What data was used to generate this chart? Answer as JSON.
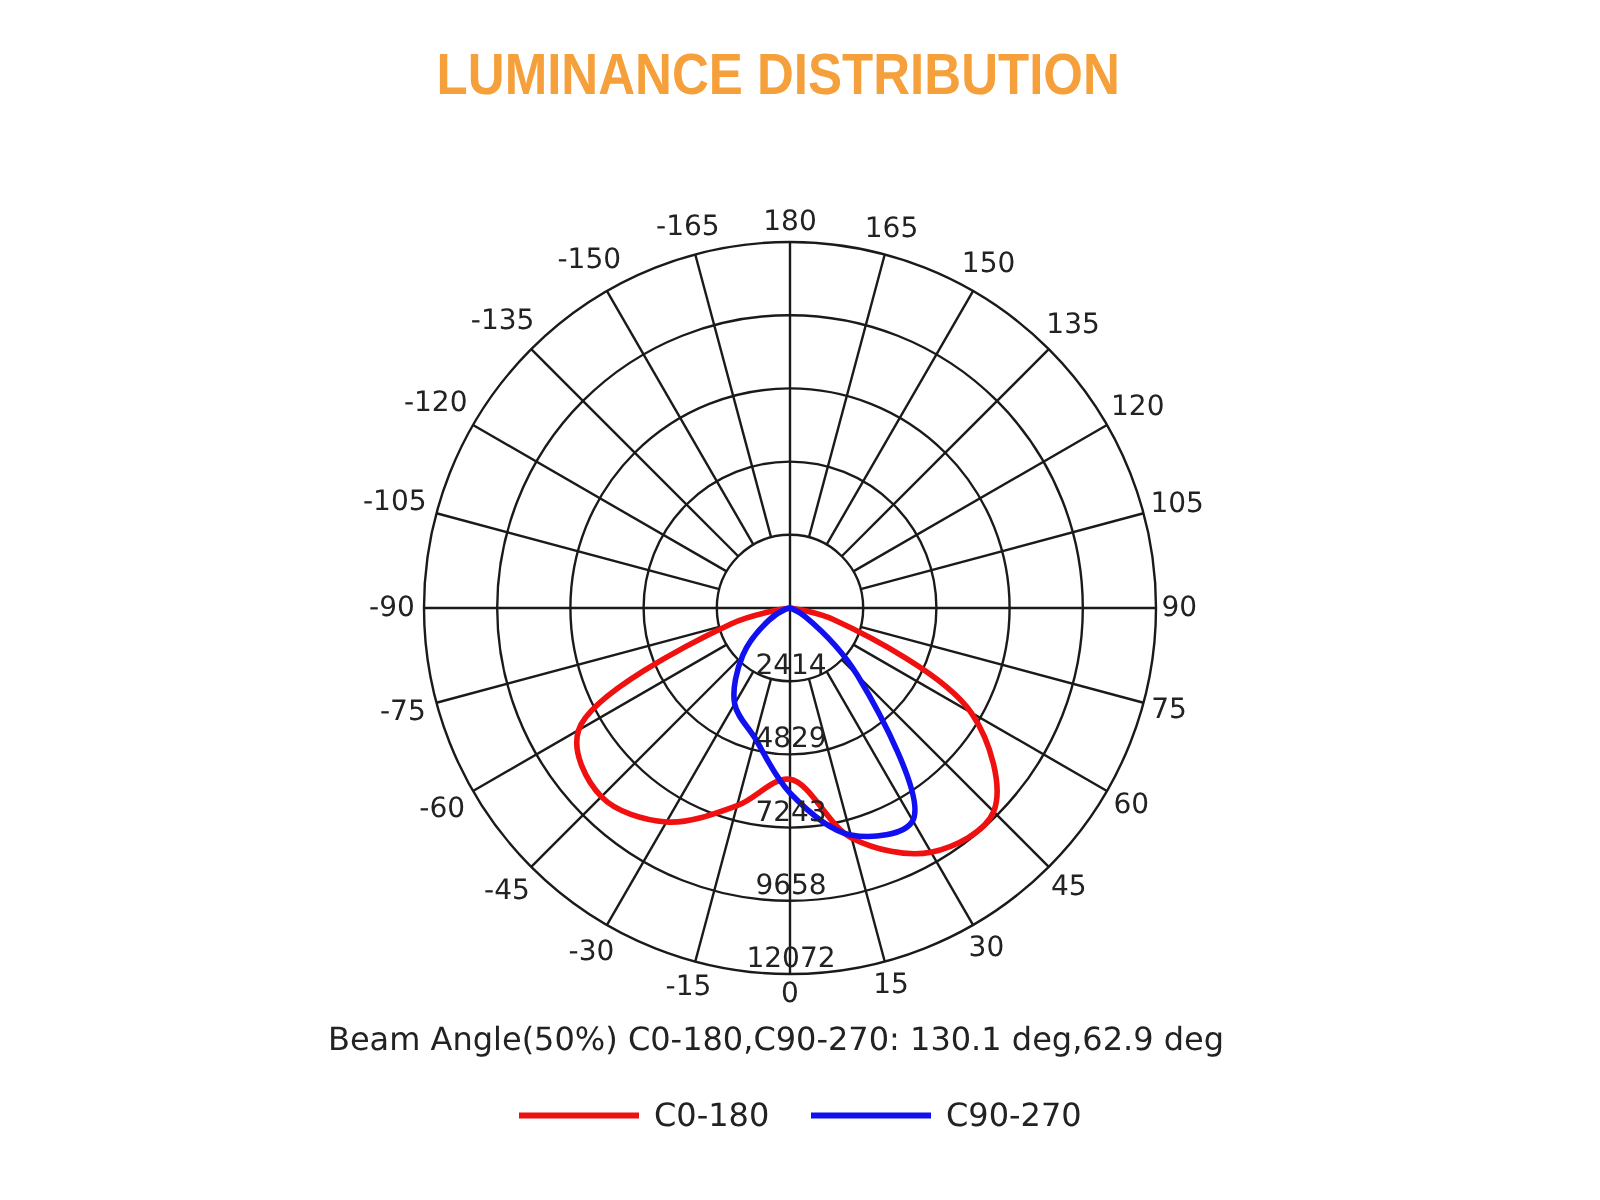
{
  "chart_data": {
    "type": "radar",
    "title": "LUMINANCE DISTRIBUTION",
    "categories": [
      "180",
      "165",
      "150",
      "135",
      "120",
      "105",
      "90",
      "75",
      "60",
      "45",
      "30",
      "15",
      "0",
      "-15",
      "-30",
      "-45",
      "-60",
      "-75",
      "-90",
      "-105",
      "-120",
      "-135",
      "-150",
      "-165"
    ],
    "series": [
      {
        "name": "C0-180",
        "color": "#f01010",
        "values": [
          0,
          0,
          0,
          0,
          0,
          0,
          0,
          1500,
          6900,
          9500,
          9300,
          7850,
          5650,
          6750,
          8150,
          8800,
          8050,
          2000,
          0,
          0,
          0,
          0,
          0,
          0
        ]
      },
      {
        "name": "C90-270",
        "color": "#1010f0",
        "values": [
          0,
          0,
          0,
          0,
          0,
          0,
          0,
          50,
          600,
          3150,
          8100,
          7750,
          6100,
          4450,
          3650,
          2200,
          800,
          150,
          0,
          0,
          0,
          0,
          0,
          0
        ]
      }
    ],
    "ylim": [
      0,
      12072
    ],
    "yticks": [
      2414,
      4829,
      7243,
      9658,
      12072
    ],
    "grid": true,
    "legend": "bottom",
    "annotations": [
      "Beam Angle(50%) C0-180,C90-270: 130.1 deg,62.9 deg"
    ]
  }
}
